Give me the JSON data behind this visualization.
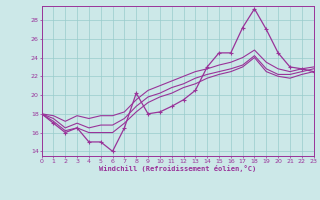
{
  "xlabel": "Windchill (Refroidissement éolien,°C)",
  "bg_color": "#cce8e8",
  "grid_color": "#99cccc",
  "line_color": "#993399",
  "xlim": [
    0,
    23
  ],
  "ylim": [
    13.5,
    29.5
  ],
  "yticks": [
    14,
    16,
    18,
    20,
    22,
    24,
    26,
    28
  ],
  "xticks": [
    0,
    1,
    2,
    3,
    4,
    5,
    6,
    7,
    8,
    9,
    10,
    11,
    12,
    13,
    14,
    15,
    16,
    17,
    18,
    19,
    20,
    21,
    22,
    23
  ],
  "series1_x": [
    0,
    1,
    2,
    3,
    4,
    5,
    6,
    7,
    8,
    9,
    10,
    11,
    12,
    13,
    14,
    15,
    16,
    17,
    18,
    19,
    20,
    21,
    22,
    23
  ],
  "series1_y": [
    18.0,
    17.0,
    16.0,
    16.5,
    15.0,
    15.0,
    14.0,
    16.5,
    20.2,
    18.0,
    18.2,
    18.8,
    19.5,
    20.5,
    23.0,
    24.5,
    24.5,
    27.2,
    29.2,
    27.0,
    24.5,
    23.0,
    22.8,
    22.5
  ],
  "series2_x": [
    0,
    1,
    2,
    3,
    4,
    5,
    6,
    7,
    8,
    9,
    10,
    11,
    12,
    13,
    14,
    15,
    16,
    17,
    18,
    19,
    20,
    21,
    22,
    23
  ],
  "series2_y": [
    18.0,
    17.2,
    16.2,
    16.5,
    16.0,
    16.0,
    16.0,
    17.0,
    18.2,
    19.2,
    19.8,
    20.2,
    20.8,
    21.2,
    21.8,
    22.2,
    22.5,
    23.0,
    24.0,
    22.5,
    22.0,
    21.8,
    22.2,
    22.5
  ],
  "series3_x": [
    0,
    1,
    2,
    3,
    4,
    5,
    6,
    7,
    8,
    9,
    10,
    11,
    12,
    13,
    14,
    15,
    16,
    17,
    18,
    19,
    20,
    21,
    22,
    23
  ],
  "series3_y": [
    18.0,
    17.5,
    16.5,
    17.0,
    16.5,
    16.8,
    16.8,
    17.5,
    18.8,
    19.8,
    20.2,
    20.8,
    21.2,
    21.8,
    22.2,
    22.5,
    22.8,
    23.2,
    24.2,
    22.8,
    22.2,
    22.2,
    22.5,
    22.8
  ],
  "series4_x": [
    0,
    1,
    2,
    3,
    4,
    5,
    6,
    7,
    8,
    9,
    10,
    11,
    12,
    13,
    14,
    15,
    16,
    17,
    18,
    19,
    20,
    21,
    22,
    23
  ],
  "series4_y": [
    18.0,
    17.8,
    17.2,
    17.8,
    17.5,
    17.8,
    17.8,
    18.2,
    19.5,
    20.5,
    21.0,
    21.5,
    22.0,
    22.5,
    22.8,
    23.2,
    23.5,
    24.0,
    24.8,
    23.5,
    22.8,
    22.5,
    22.8,
    23.0
  ]
}
